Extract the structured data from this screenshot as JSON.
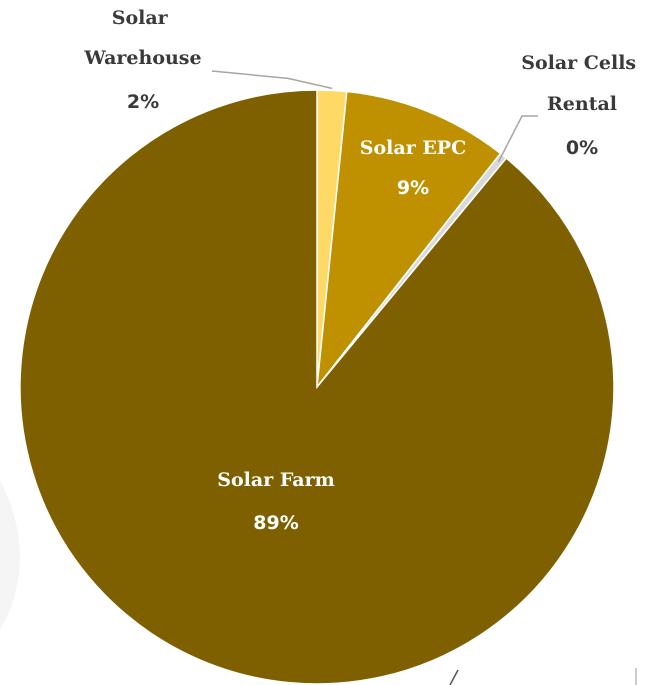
{
  "chart_data": {
    "type": "pie",
    "start_angle_deg": 0,
    "direction": "clockwise",
    "slices": [
      {
        "name": "Solar Warehouse",
        "label_lines": [
          "Solar",
          "Warehouse"
        ],
        "percent_label": "2%",
        "value": 1.6,
        "color": "#FFD966"
      },
      {
        "name": "Solar EPC",
        "label_lines": [
          "Solar EPC"
        ],
        "percent_label": "9%",
        "value": 9.0,
        "color": "#BF9000"
      },
      {
        "name": "Solar Cells Rental",
        "label_lines": [
          "Solar Cells",
          "Rental"
        ],
        "percent_label": "0%",
        "value": 0.4,
        "color": "#D9D9D9"
      },
      {
        "name": "Solar Farm",
        "label_lines": [
          "Solar Farm"
        ],
        "percent_label": "89%",
        "value": 89.0,
        "color": "#7F6000"
      }
    ]
  }
}
